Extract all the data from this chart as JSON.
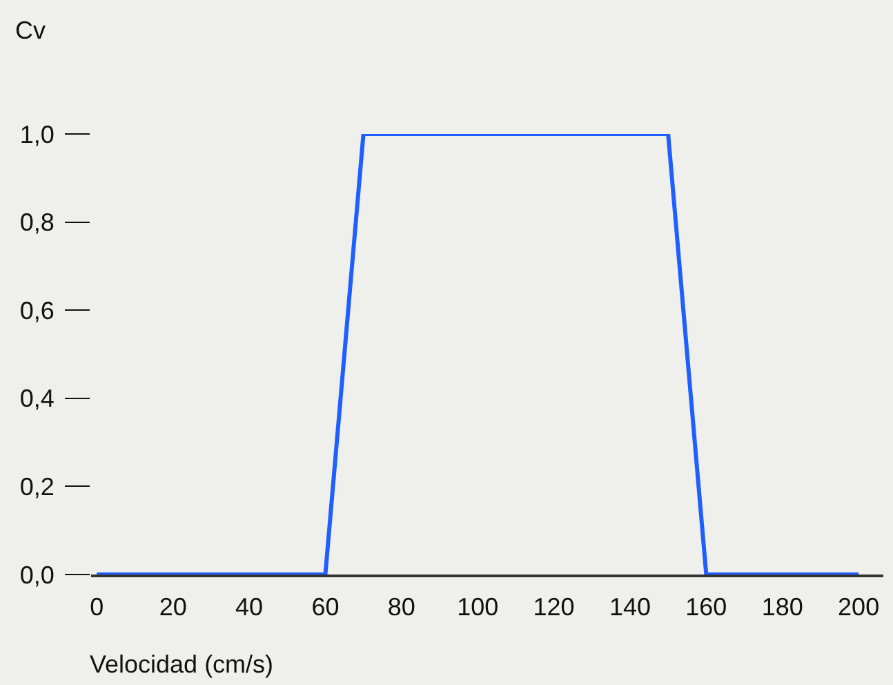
{
  "chart_data": {
    "type": "line",
    "xlabel": "Velocidad (cm/s)",
    "ylabel": "Cv",
    "series": [
      {
        "color": "#1f5fff",
        "x": [
          0,
          60,
          70,
          150,
          160,
          200
        ],
        "values": [
          0,
          0,
          1,
          1,
          0,
          0
        ]
      }
    ],
    "xlim": [
      -1.5,
      206.5
    ],
    "xticks": [
      0,
      20,
      40,
      60,
      80,
      100,
      120,
      140,
      160,
      180,
      200
    ],
    "ylim": [
      0,
      1
    ],
    "yticks": [
      {
        "value": 0,
        "label": "0,0"
      },
      {
        "value": 0.2,
        "label": "0,2"
      },
      {
        "value": 0.4,
        "label": "0,4"
      },
      {
        "value": 0.6,
        "label": "0,6"
      },
      {
        "value": 0.8,
        "label": "0,8"
      },
      {
        "value": 1,
        "label": "1,0"
      }
    ],
    "grid": false,
    "legend": false,
    "marker": "none",
    "line_style": "solid"
  }
}
